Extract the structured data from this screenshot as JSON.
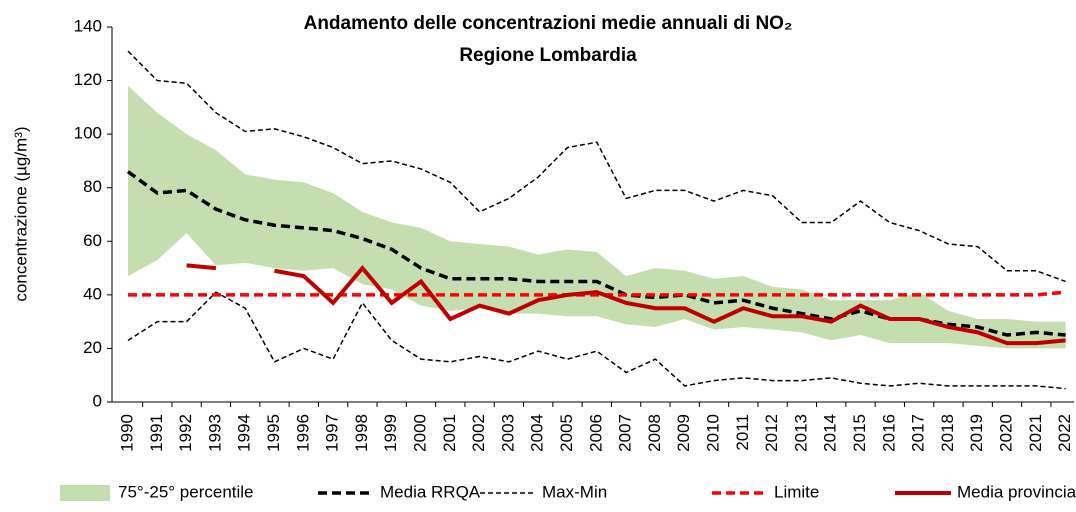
{
  "chart_data": {
    "type": "line",
    "title": "Andamento delle concentrazioni medie annuali di NO₂",
    "subtitle": "Regione Lombardia",
    "y_label": "concentrazione (µg/m³)",
    "categories": [
      "1990",
      "1991",
      "1992",
      "1993",
      "1994",
      "1995",
      "1996",
      "1997",
      "1998",
      "1999",
      "2000",
      "2001",
      "2002",
      "2003",
      "2004",
      "2005",
      "2006",
      "2007",
      "2008",
      "2009",
      "2010",
      "2011",
      "2012",
      "2013",
      "2014",
      "2015",
      "2016",
      "2017",
      "2018",
      "2019",
      "2020",
      "2021",
      "2022"
    ],
    "band": {
      "name": "75°-25° percentile",
      "color": "#c5deb0",
      "upper": [
        118,
        108,
        100,
        94,
        85,
        83,
        82,
        78,
        71,
        67,
        65,
        60,
        59,
        58,
        55,
        57,
        56,
        47,
        50,
        49,
        46,
        47,
        43,
        42,
        38,
        38,
        38,
        41,
        34,
        31,
        31,
        30,
        30
      ],
      "lower": [
        47,
        53,
        63,
        51,
        52,
        50,
        49,
        50,
        44,
        42,
        36,
        34,
        35,
        33,
        33,
        32,
        32,
        29,
        28,
        31,
        27,
        28,
        27,
        26,
        23,
        25,
        22,
        22,
        22,
        21,
        20,
        20,
        20
      ]
    },
    "series": [
      {
        "name": "Media RRQA",
        "color": "#000000",
        "linestyle": "dashed",
        "linewidth": "thick",
        "values": [
          86,
          78,
          79,
          72,
          68,
          66,
          65,
          64,
          61,
          57,
          50,
          46,
          46,
          46,
          45,
          45,
          45,
          40,
          39,
          40,
          37,
          38,
          35,
          33,
          31,
          34,
          31,
          31,
          29,
          28,
          25,
          26,
          25
        ]
      },
      {
        "name": "Max-Min",
        "color": "#000000",
        "linestyle": "dashed",
        "linewidth": "thin",
        "values": [
          131,
          120,
          119,
          108,
          101,
          102,
          99,
          95,
          89,
          90,
          87,
          82,
          71,
          76,
          84,
          95,
          97,
          76,
          79,
          79,
          75,
          79,
          77,
          67,
          67,
          75,
          67,
          64,
          59,
          58,
          49,
          49,
          45
        ],
        "values_min": [
          23,
          30,
          30,
          41,
          35,
          15,
          20,
          16,
          37,
          23,
          16,
          15,
          17,
          15,
          19,
          16,
          19,
          11,
          16,
          6,
          8,
          9,
          8,
          8,
          9,
          7,
          6,
          7,
          6,
          6,
          6,
          6,
          5
        ]
      },
      {
        "name": "Limite",
        "color": "#ff0000",
        "linestyle": "dashed",
        "linewidth": "thick",
        "values": [
          40,
          40,
          40,
          40,
          40,
          40,
          40,
          40,
          40,
          40,
          40,
          40,
          40,
          40,
          40,
          40,
          40,
          40,
          40,
          40,
          40,
          40,
          40,
          40,
          40,
          40,
          40,
          40,
          40,
          40,
          40,
          40,
          41
        ]
      },
      {
        "name": "Media provinciale",
        "color": "#c00000",
        "linestyle": "solid",
        "linewidth": "thick",
        "values": [
          null,
          null,
          51,
          50,
          null,
          49,
          47,
          37,
          50,
          37,
          45,
          31,
          36,
          33,
          38,
          40,
          41,
          37,
          35,
          35,
          30,
          35,
          32,
          32,
          30,
          36,
          31,
          31,
          28,
          26,
          22,
          22,
          23
        ]
      }
    ],
    "ylim": [
      0,
      140
    ],
    "yticks": [
      0,
      20,
      40,
      60,
      80,
      100,
      120,
      140
    ]
  }
}
